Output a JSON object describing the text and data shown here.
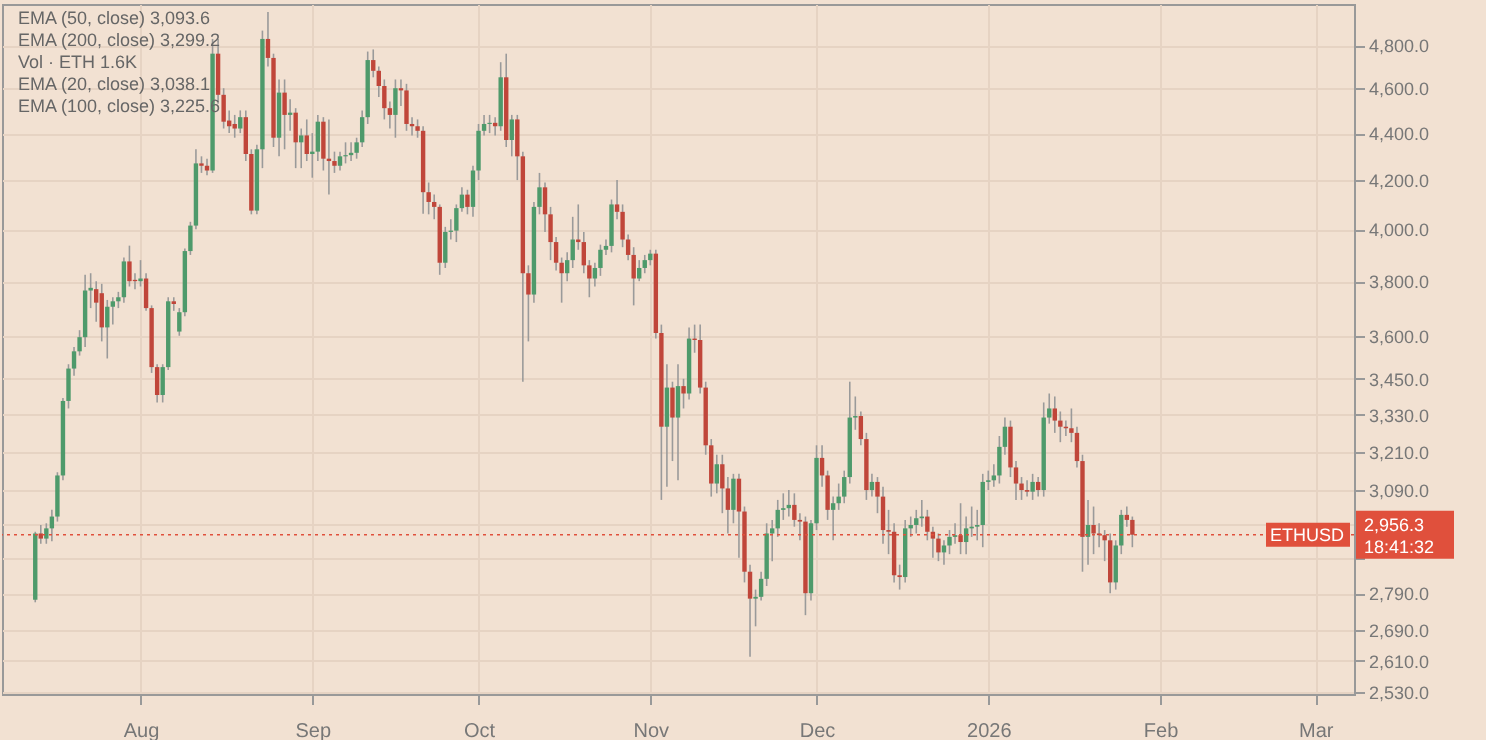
{
  "chart_data": {
    "type": "candlestick",
    "annotations": [
      "EMA (50, close) 3,093.6",
      "EMA (200, close) 3,299.2",
      "Vol · ETH 1.6K",
      "EMA (20, close) 3,038.1",
      "EMA (100, close) 3,225.6",
      "2,956.3",
      "18:41:32"
    ],
    "xlim": [
      "2025-07-07",
      "2026-03-08"
    ],
    "xticks": [
      {
        "value": "2025-08-01",
        "label": "Aug"
      },
      {
        "value": "2025-09-01",
        "label": "Sep"
      },
      {
        "value": "2025-10-01",
        "label": "Oct"
      },
      {
        "value": "2025-11-01",
        "label": "Nov"
      },
      {
        "value": "2025-12-01",
        "label": "Dec"
      },
      {
        "value": "2026-01-01",
        "label": "2026"
      },
      {
        "value": "2026-02-01",
        "label": "Feb"
      },
      {
        "value": "2026-03-01",
        "label": "Mar"
      }
    ],
    "ylim": [
      2525,
      5000
    ],
    "log": "y",
    "yticks": [
      {
        "value": 2530,
        "label": "2,530.0"
      },
      {
        "value": 2610,
        "label": "2,610.0"
      },
      {
        "value": 2690,
        "label": "2,690.0"
      },
      {
        "value": 2790,
        "label": "2,790.0"
      },
      {
        "value": 2890,
        "label": null
      },
      {
        "value": 2990,
        "label": null
      },
      {
        "value": 3090,
        "label": "3,090.0"
      },
      {
        "value": 3210,
        "label": "3,210.0"
      },
      {
        "value": 3330,
        "label": "3,330.0"
      },
      {
        "value": 3450,
        "label": "3,450.0"
      },
      {
        "value": 3600,
        "label": "3,600.0"
      },
      {
        "value": 3800,
        "label": "3,800.0"
      },
      {
        "value": 4000,
        "label": "4,000.0"
      },
      {
        "value": 4200,
        "label": "4,200.0"
      },
      {
        "value": 4400,
        "label": "4,400.0"
      },
      {
        "value": 4600,
        "label": "4,600.0"
      },
      {
        "value": 4800,
        "label": "4,800.0"
      }
    ],
    "grid": true,
    "ref_lines": [
      {
        "axis": "y",
        "value": 2956.3,
        "label": "ETHUSD",
        "color": "#e0503c",
        "line_style": "dotted"
      }
    ],
    "x": [
      "2025-07-13",
      "2025-07-14",
      "2025-07-15",
      "2025-07-16",
      "2025-07-17",
      "2025-07-18",
      "2025-07-19",
      "2025-07-20",
      "2025-07-21",
      "2025-07-22",
      "2025-07-23",
      "2025-07-24",
      "2025-07-25",
      "2025-07-26",
      "2025-07-27",
      "2025-07-28",
      "2025-07-29",
      "2025-07-30",
      "2025-07-31",
      "2025-08-01",
      "2025-08-02",
      "2025-08-03",
      "2025-08-04",
      "2025-08-05",
      "2025-08-06",
      "2025-08-07",
      "2025-08-08",
      "2025-08-09",
      "2025-08-10",
      "2025-08-11",
      "2025-08-12",
      "2025-08-13",
      "2025-08-14",
      "2025-08-15",
      "2025-08-16",
      "2025-08-17",
      "2025-08-18",
      "2025-08-19",
      "2025-08-20",
      "2025-08-21",
      "2025-08-22",
      "2025-08-23",
      "2025-08-24",
      "2025-08-25",
      "2025-08-26",
      "2025-08-27",
      "2025-08-28",
      "2025-08-29",
      "2025-08-30",
      "2025-08-31",
      "2025-09-01",
      "2025-09-02",
      "2025-09-03",
      "2025-09-04",
      "2025-09-05",
      "2025-09-06",
      "2025-09-07",
      "2025-09-08",
      "2025-09-09",
      "2025-09-10",
      "2025-09-11",
      "2025-09-12",
      "2025-09-13",
      "2025-09-14",
      "2025-09-15",
      "2025-09-16",
      "2025-09-17",
      "2025-09-18",
      "2025-09-19",
      "2025-09-20",
      "2025-09-21",
      "2025-09-22",
      "2025-09-23",
      "2025-09-24",
      "2025-09-25",
      "2025-09-26",
      "2025-09-27",
      "2025-09-28",
      "2025-09-29",
      "2025-09-30",
      "2025-10-01",
      "2025-10-02",
      "2025-10-03",
      "2025-10-04",
      "2025-10-05",
      "2025-10-06",
      "2025-10-07",
      "2025-10-08",
      "2025-10-09",
      "2025-10-10",
      "2025-10-11",
      "2025-10-12",
      "2025-10-13",
      "2025-10-14",
      "2025-10-15",
      "2025-10-16",
      "2025-10-17",
      "2025-10-18",
      "2025-10-19",
      "2025-10-20",
      "2025-10-21",
      "2025-10-22",
      "2025-10-23",
      "2025-10-24",
      "2025-10-25",
      "2025-10-26",
      "2025-10-27",
      "2025-10-28",
      "2025-10-29",
      "2025-10-30",
      "2025-10-31",
      "2025-11-01",
      "2025-11-02",
      "2025-11-03",
      "2025-11-04",
      "2025-11-05",
      "2025-11-06",
      "2025-11-07",
      "2025-11-08",
      "2025-11-09",
      "2025-11-10",
      "2025-11-11",
      "2025-11-12",
      "2025-11-13",
      "2025-11-14",
      "2025-11-15",
      "2025-11-16",
      "2025-11-17",
      "2025-11-18",
      "2025-11-19",
      "2025-11-20",
      "2025-11-21",
      "2025-11-22",
      "2025-11-23",
      "2025-11-24",
      "2025-11-25",
      "2025-11-26",
      "2025-11-27",
      "2025-11-28",
      "2025-11-29",
      "2025-11-30",
      "2025-12-01",
      "2025-12-02",
      "2025-12-03",
      "2025-12-04",
      "2025-12-05",
      "2025-12-06",
      "2025-12-07",
      "2025-12-08",
      "2025-12-09",
      "2025-12-10",
      "2025-12-11",
      "2025-12-12",
      "2025-12-13",
      "2025-12-14",
      "2025-12-15",
      "2025-12-16",
      "2025-12-17",
      "2025-12-18",
      "2025-12-19",
      "2025-12-20",
      "2025-12-21",
      "2025-12-22",
      "2025-12-23",
      "2025-12-24",
      "2025-12-25",
      "2025-12-26",
      "2025-12-27",
      "2025-12-28",
      "2025-12-29",
      "2025-12-30",
      "2025-12-31",
      "2026-01-01",
      "2026-01-02",
      "2026-01-03",
      "2026-01-04",
      "2026-01-05",
      "2026-01-06",
      "2026-01-07",
      "2026-01-08",
      "2026-01-09",
      "2026-01-10",
      "2026-01-11",
      "2026-01-12",
      "2026-01-13",
      "2026-01-14",
      "2026-01-15",
      "2026-01-16",
      "2026-01-17",
      "2026-01-18",
      "2026-01-19",
      "2026-01-20",
      "2026-01-21",
      "2026-01-22",
      "2026-01-23",
      "2026-01-24",
      "2026-01-25",
      "2026-01-26",
      "2026-01-27"
    ],
    "ohlc": [
      [
        2772,
        2965,
        2765,
        2960
      ],
      [
        2960,
        2985,
        2930,
        2945
      ],
      [
        2945,
        2990,
        2930,
        2975
      ],
      [
        2975,
        3030,
        2937,
        3010
      ],
      [
        3010,
        3145,
        2995,
        3135
      ],
      [
        3135,
        3385,
        3120,
        3375
      ],
      [
        3375,
        3500,
        3350,
        3485
      ],
      [
        3485,
        3560,
        3460,
        3545
      ],
      [
        3545,
        3620,
        3530,
        3595
      ],
      [
        3595,
        3824,
        3560,
        3765
      ],
      [
        3765,
        3830,
        3700,
        3775
      ],
      [
        3770,
        3800,
        3650,
        3720
      ],
      [
        3755,
        3790,
        3580,
        3630
      ],
      [
        3630,
        3730,
        3520,
        3705
      ],
      [
        3705,
        3740,
        3640,
        3725
      ],
      [
        3725,
        3760,
        3700,
        3740
      ],
      [
        3740,
        3890,
        3720,
        3875
      ],
      [
        3875,
        3936,
        3780,
        3800
      ],
      [
        3805,
        3830,
        3770,
        3800
      ],
      [
        3800,
        3880,
        3780,
        3810
      ],
      [
        3810,
        3830,
        3690,
        3700
      ],
      [
        3700,
        3710,
        3470,
        3490
      ],
      [
        3490,
        3500,
        3370,
        3395
      ],
      [
        3395,
        3500,
        3370,
        3490
      ],
      [
        3490,
        3740,
        3480,
        3725
      ],
      [
        3725,
        3740,
        3690,
        3715
      ],
      [
        3615,
        3700,
        3600,
        3685
      ],
      [
        3685,
        3925,
        3670,
        3915
      ],
      [
        3915,
        4030,
        3900,
        4015
      ],
      [
        4015,
        4330,
        4000,
        4270
      ],
      [
        4270,
        4300,
        4230,
        4260
      ],
      [
        4260,
        4290,
        4220,
        4240
      ],
      [
        4240,
        4830,
        4230,
        4760
      ],
      [
        4760,
        4830,
        4530,
        4570
      ],
      [
        4570,
        4600,
        4420,
        4450
      ],
      [
        4455,
        4500,
        4400,
        4430
      ],
      [
        4440,
        4480,
        4380,
        4420
      ],
      [
        4420,
        4500,
        4400,
        4470
      ],
      [
        4470,
        4500,
        4280,
        4310
      ],
      [
        4310,
        4330,
        4060,
        4075
      ],
      [
        4075,
        4350,
        4060,
        4330
      ],
      [
        4330,
        4870,
        4250,
        4830
      ],
      [
        4830,
        4960,
        4700,
        4740
      ],
      [
        4740,
        4760,
        4340,
        4380
      ],
      [
        4380,
        4640,
        4300,
        4580
      ],
      [
        4580,
        4640,
        4330,
        4480
      ],
      [
        4480,
        4550,
        4410,
        4490
      ],
      [
        4490,
        4510,
        4250,
        4360
      ],
      [
        4360,
        4420,
        4250,
        4390
      ],
      [
        4390,
        4460,
        4280,
        4310
      ],
      [
        4310,
        4400,
        4210,
        4320
      ],
      [
        4320,
        4480,
        4280,
        4450
      ],
      [
        4450,
        4470,
        4240,
        4290
      ],
      [
        4290,
        4460,
        4140,
        4280
      ],
      [
        4280,
        4320,
        4230,
        4260
      ],
      [
        4260,
        4320,
        4240,
        4300
      ],
      [
        4300,
        4360,
        4270,
        4305
      ],
      [
        4305,
        4360,
        4280,
        4315
      ],
      [
        4315,
        4380,
        4290,
        4360
      ],
      [
        4360,
        4500,
        4340,
        4470
      ],
      [
        4470,
        4770,
        4440,
        4730
      ],
      [
        4730,
        4780,
        4650,
        4680
      ],
      [
        4680,
        4700,
        4560,
        4610
      ],
      [
        4610,
        4640,
        4460,
        4510
      ],
      [
        4510,
        4540,
        4420,
        4480
      ],
      [
        4480,
        4640,
        4380,
        4600
      ],
      [
        4600,
        4640,
        4520,
        4590
      ],
      [
        4590,
        4620,
        4410,
        4440
      ],
      [
        4440,
        4470,
        4390,
        4430
      ],
      [
        4430,
        4460,
        4380,
        4410
      ],
      [
        4410,
        4430,
        4062,
        4150
      ],
      [
        4150,
        4190,
        4060,
        4110
      ],
      [
        4110,
        4140,
        4040,
        4090
      ],
      [
        4090,
        4100,
        3824,
        3870
      ],
      [
        3870,
        4010,
        3850,
        3990
      ],
      [
        3990,
        4040,
        3960,
        3995
      ],
      [
        3995,
        4100,
        3950,
        4085
      ],
      [
        4085,
        4170,
        4070,
        4140
      ],
      [
        4140,
        4160,
        4060,
        4090
      ],
      [
        4090,
        4260,
        4050,
        4240
      ],
      [
        4240,
        4440,
        4200,
        4410
      ],
      [
        4410,
        4480,
        4390,
        4440
      ],
      [
        4440,
        4480,
        4400,
        4445
      ],
      [
        4445,
        4470,
        4390,
        4430
      ],
      [
        4430,
        4720,
        4410,
        4650
      ],
      [
        4650,
        4760,
        4340,
        4370
      ],
      [
        4370,
        4480,
        4300,
        4460
      ],
      [
        4460,
        4480,
        4200,
        4300
      ],
      [
        4300,
        4320,
        3440,
        3830
      ],
      [
        3830,
        3860,
        3580,
        3750
      ],
      [
        3750,
        4110,
        3720,
        4090
      ],
      [
        4090,
        4230,
        4060,
        4170
      ],
      [
        4170,
        4190,
        3990,
        4060
      ],
      [
        4060,
        4090,
        3880,
        3950
      ],
      [
        3950,
        3970,
        3840,
        3870
      ],
      [
        3870,
        3890,
        3720,
        3830
      ],
      [
        3830,
        3910,
        3800,
        3880
      ],
      [
        3880,
        4050,
        3850,
        3960
      ],
      [
        3960,
        4100,
        3920,
        3950
      ],
      [
        3950,
        3990,
        3830,
        3860
      ],
      [
        3860,
        3880,
        3740,
        3810
      ],
      [
        3810,
        3870,
        3780,
        3850
      ],
      [
        3850,
        3940,
        3820,
        3920
      ],
      [
        3920,
        3960,
        3900,
        3935
      ],
      [
        3935,
        4120,
        3910,
        4100
      ],
      [
        4100,
        4200,
        4040,
        4070
      ],
      [
        4070,
        4100,
        3930,
        3960
      ],
      [
        3960,
        3980,
        3880,
        3900
      ],
      [
        3900,
        3930,
        3710,
        3810
      ],
      [
        3810,
        3880,
        3800,
        3850
      ],
      [
        3850,
        3900,
        3830,
        3880
      ],
      [
        3880,
        3920,
        3860,
        3905
      ],
      [
        3905,
        3920,
        3590,
        3610
      ],
      [
        3610,
        3640,
        3060,
        3290
      ],
      [
        3290,
        3500,
        3100,
        3420
      ],
      [
        3420,
        3440,
        3180,
        3320
      ],
      [
        3320,
        3500,
        3120,
        3425
      ],
      [
        3425,
        3450,
        3350,
        3400
      ],
      [
        3400,
        3630,
        3380,
        3590
      ],
      [
        3590,
        3640,
        3540,
        3585
      ],
      [
        3585,
        3640,
        3400,
        3420
      ],
      [
        3420,
        3440,
        3200,
        3230
      ],
      [
        3230,
        3250,
        3070,
        3110
      ],
      [
        3110,
        3200,
        3080,
        3170
      ],
      [
        3170,
        3200,
        3020,
        3095
      ],
      [
        3095,
        3130,
        2960,
        3030
      ],
      [
        3030,
        3140,
        2990,
        3125
      ],
      [
        3125,
        3140,
        2890,
        3025
      ],
      [
        3025,
        3040,
        2820,
        2850
      ],
      [
        2850,
        2870,
        2620,
        2775
      ],
      [
        2775,
        2800,
        2700,
        2780
      ],
      [
        2780,
        2850,
        2770,
        2830
      ],
      [
        2830,
        2990,
        2810,
        2960
      ],
      [
        2960,
        3000,
        2880,
        2975
      ],
      [
        2975,
        3060,
        2950,
        3030
      ],
      [
        3030,
        3080,
        3000,
        3035
      ],
      [
        3035,
        3090,
        3010,
        3045
      ],
      [
        3045,
        3080,
        2980,
        3000
      ],
      [
        3000,
        3020,
        2940,
        2995
      ],
      [
        2995,
        3010,
        2730,
        2790
      ],
      [
        2790,
        3000,
        2770,
        2990
      ],
      [
        2990,
        3230,
        2970,
        3190
      ],
      [
        3190,
        3230,
        3100,
        3135
      ],
      [
        3135,
        3150,
        3000,
        3030
      ],
      [
        3030,
        3070,
        2940,
        3050
      ],
      [
        3050,
        3110,
        3030,
        3070
      ],
      [
        3070,
        3150,
        3050,
        3130
      ],
      [
        3130,
        3440,
        3110,
        3320
      ],
      [
        3320,
        3390,
        3280,
        3325
      ],
      [
        3325,
        3340,
        3230,
        3250
      ],
      [
        3250,
        3270,
        3060,
        3090
      ],
      [
        3090,
        3140,
        3070,
        3115
      ],
      [
        3115,
        3130,
        3020,
        3070
      ],
      [
        3070,
        3100,
        2930,
        2970
      ],
      [
        2970,
        3030,
        2900,
        2965
      ],
      [
        2965,
        2990,
        2820,
        2840
      ],
      [
        2840,
        2870,
        2800,
        2835
      ],
      [
        2835,
        3000,
        2820,
        2975
      ],
      [
        2975,
        3010,
        2950,
        2985
      ],
      [
        2985,
        3030,
        2960,
        3005
      ],
      [
        3005,
        3060,
        2980,
        3010
      ],
      [
        3010,
        3030,
        2940,
        2965
      ],
      [
        2965,
        2980,
        2890,
        2945
      ],
      [
        2945,
        2960,
        2880,
        2905
      ],
      [
        2905,
        2940,
        2870,
        2925
      ],
      [
        2925,
        2970,
        2900,
        2950
      ],
      [
        2950,
        2990,
        2930,
        2955
      ],
      [
        2955,
        3050,
        2900,
        2935
      ],
      [
        2935,
        3010,
        2900,
        2975
      ],
      [
        2975,
        3040,
        2950,
        2980
      ],
      [
        2980,
        3030,
        2940,
        2985
      ],
      [
        2985,
        3140,
        2920,
        3115
      ],
      [
        3115,
        3150,
        3090,
        3120
      ],
      [
        3120,
        3170,
        3100,
        3135
      ],
      [
        3135,
        3260,
        3110,
        3225
      ],
      [
        3225,
        3320,
        3200,
        3290
      ],
      [
        3290,
        3310,
        3130,
        3160
      ],
      [
        3160,
        3180,
        3060,
        3110
      ],
      [
        3110,
        3130,
        3060,
        3090
      ],
      [
        3090,
        3120,
        3070,
        3085
      ],
      [
        3085,
        3140,
        3060,
        3115
      ],
      [
        3115,
        3130,
        3070,
        3090
      ],
      [
        3090,
        3370,
        3070,
        3320
      ],
      [
        3320,
        3400,
        3300,
        3350
      ],
      [
        3350,
        3390,
        3270,
        3310
      ],
      [
        3310,
        3340,
        3240,
        3290
      ],
      [
        3290,
        3310,
        3260,
        3285
      ],
      [
        3285,
        3350,
        3240,
        3270
      ],
      [
        3270,
        3290,
        3160,
        3180
      ],
      [
        3180,
        3200,
        2850,
        2950
      ],
      [
        2950,
        3060,
        2870,
        2985
      ],
      [
        2985,
        3040,
        2900,
        2960
      ],
      [
        2960,
        2990,
        2920,
        2955
      ],
      [
        2955,
        2970,
        2880,
        2940
      ],
      [
        2940,
        2960,
        2790,
        2820
      ],
      [
        2820,
        2940,
        2800,
        2925
      ],
      [
        2925,
        3030,
        2900,
        3015
      ],
      [
        3015,
        3040,
        2980,
        3000
      ],
      [
        3000,
        3010,
        2920,
        2956.3
      ]
    ]
  }
}
